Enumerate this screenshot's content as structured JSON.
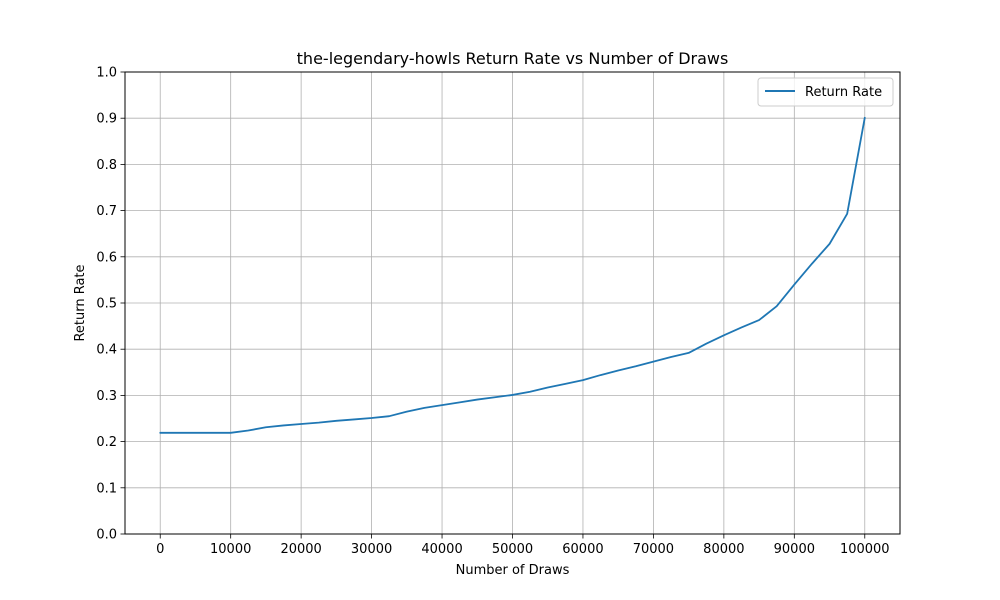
{
  "chart_data": {
    "type": "line",
    "title": "the-legendary-howls Return Rate vs Number of Draws",
    "xlabel": "Number of Draws",
    "ylabel": "Return Rate",
    "xlim": [
      -5000,
      105000
    ],
    "ylim": [
      0.0,
      1.0
    ],
    "xticks": [
      0,
      10000,
      20000,
      30000,
      40000,
      50000,
      60000,
      70000,
      80000,
      90000,
      100000
    ],
    "xtick_labels": [
      "0",
      "10000",
      "20000",
      "30000",
      "40000",
      "50000",
      "60000",
      "70000",
      "80000",
      "90000",
      "100000"
    ],
    "yticks": [
      0.0,
      0.1,
      0.2,
      0.3,
      0.4,
      0.5,
      0.6,
      0.7,
      0.8,
      0.9,
      1.0
    ],
    "ytick_labels": [
      "0.0",
      "0.1",
      "0.2",
      "0.3",
      "0.4",
      "0.5",
      "0.6",
      "0.7",
      "0.8",
      "0.9",
      "1.0"
    ],
    "grid": true,
    "legend_position": "top-right",
    "series": [
      {
        "name": "Return Rate",
        "color": "#1f77b4",
        "x": [
          0,
          2500,
          5000,
          7500,
          10000,
          12500,
          15000,
          17500,
          20000,
          22500,
          25000,
          27500,
          30000,
          32500,
          35000,
          37500,
          40000,
          42500,
          45000,
          47500,
          50000,
          52500,
          55000,
          57500,
          60000,
          62500,
          65000,
          67500,
          70000,
          72500,
          75000,
          77500,
          80000,
          82500,
          85000,
          87500,
          90000,
          92500,
          95000,
          97500,
          100000
        ],
        "y": [
          0.219,
          0.219,
          0.219,
          0.219,
          0.219,
          0.224,
          0.231,
          0.235,
          0.238,
          0.241,
          0.245,
          0.248,
          0.251,
          0.255,
          0.265,
          0.273,
          0.279,
          0.285,
          0.291,
          0.296,
          0.301,
          0.308,
          0.317,
          0.325,
          0.333,
          0.344,
          0.354,
          0.363,
          0.373,
          0.383,
          0.392,
          0.412,
          0.43,
          0.447,
          0.463,
          0.493,
          0.54,
          0.585,
          0.628,
          0.693,
          0.901
        ]
      }
    ]
  }
}
